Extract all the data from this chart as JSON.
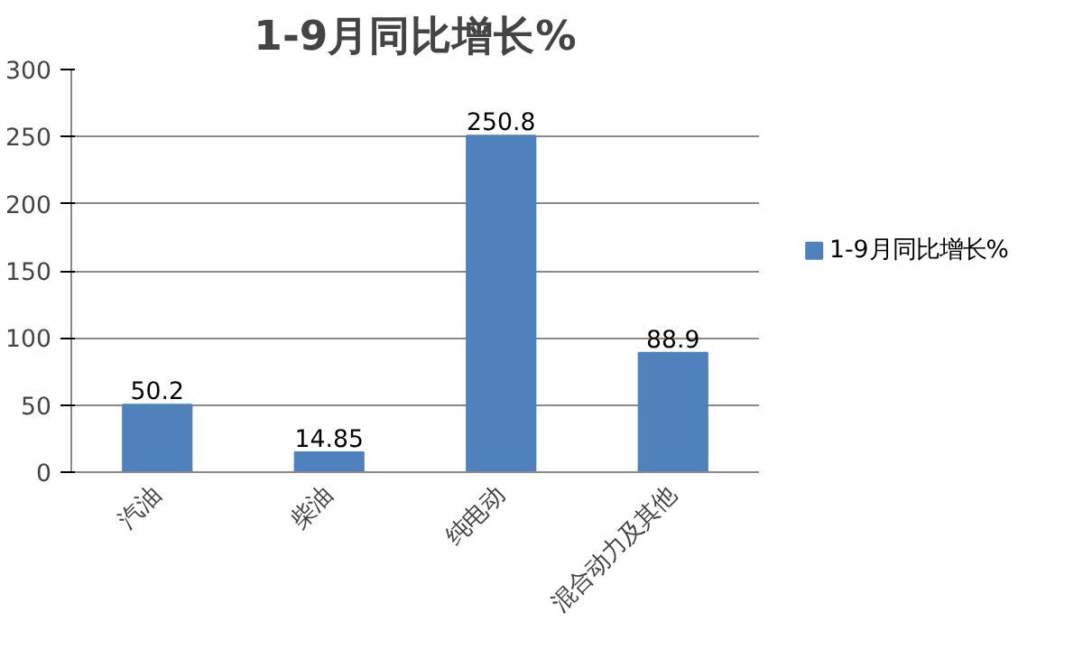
{
  "chart_data": {
    "type": "bar",
    "title": "1-9月同比增长%",
    "categories": [
      "汽油",
      "柴油",
      "纯电动",
      "混合动力及其他"
    ],
    "series": [
      {
        "name": "1-9月同比增长%",
        "color": "#4f81bd",
        "values": [
          50.2,
          14.85,
          250.8,
          88.9
        ]
      }
    ],
    "ylim": [
      0,
      300
    ],
    "yticks": [
      0,
      50,
      100,
      150,
      200,
      250,
      300
    ],
    "grid": "y",
    "legend": "right",
    "data_labels": true
  }
}
